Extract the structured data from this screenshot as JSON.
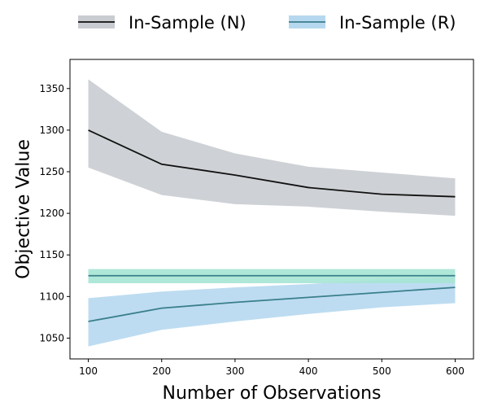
{
  "chart_data": {
    "type": "line",
    "title": "",
    "xlabel": "Number of Observations",
    "ylabel": "Objective Value",
    "x": [
      100,
      200,
      300,
      400,
      500,
      600
    ],
    "xlim": [
      75,
      625
    ],
    "ylim": [
      1025,
      1385
    ],
    "xticks": [
      100,
      200,
      300,
      400,
      500,
      600
    ],
    "yticks": [
      1050,
      1100,
      1150,
      1200,
      1250,
      1300,
      1350
    ],
    "grid": false,
    "legend_placement": "top-center-outside",
    "series": [
      {
        "name": "In-Sample (N)",
        "values": [
          1300,
          1259,
          1246,
          1231,
          1223,
          1220
        ],
        "lower": [
          1255,
          1222,
          1211,
          1208,
          1202,
          1197
        ],
        "upper": [
          1361,
          1298,
          1272,
          1256,
          1249,
          1242
        ],
        "line_color": "#111111",
        "band_color": "#c9ccd0"
      },
      {
        "name": "In-Sample (R)",
        "values": [
          1070,
          1086,
          1093,
          1099,
          1105,
          1111
        ],
        "lower": [
          1040,
          1060,
          1070,
          1079,
          1087,
          1092
        ],
        "upper": [
          1098,
          1106,
          1111,
          1115,
          1120,
          1124
        ],
        "line_color": "#3a7f8c",
        "band_color": "#b6d8ef"
      },
      {
        "values": [
          1125,
          1125,
          1125,
          1125,
          1125,
          1125
        ],
        "lower": [
          1116,
          1116,
          1116,
          1116,
          1116,
          1116
        ],
        "upper": [
          1133,
          1133,
          1133,
          1133,
          1133,
          1133
        ],
        "line_color": "#3a7f8c",
        "band_color": "#a6e4d4"
      }
    ]
  }
}
